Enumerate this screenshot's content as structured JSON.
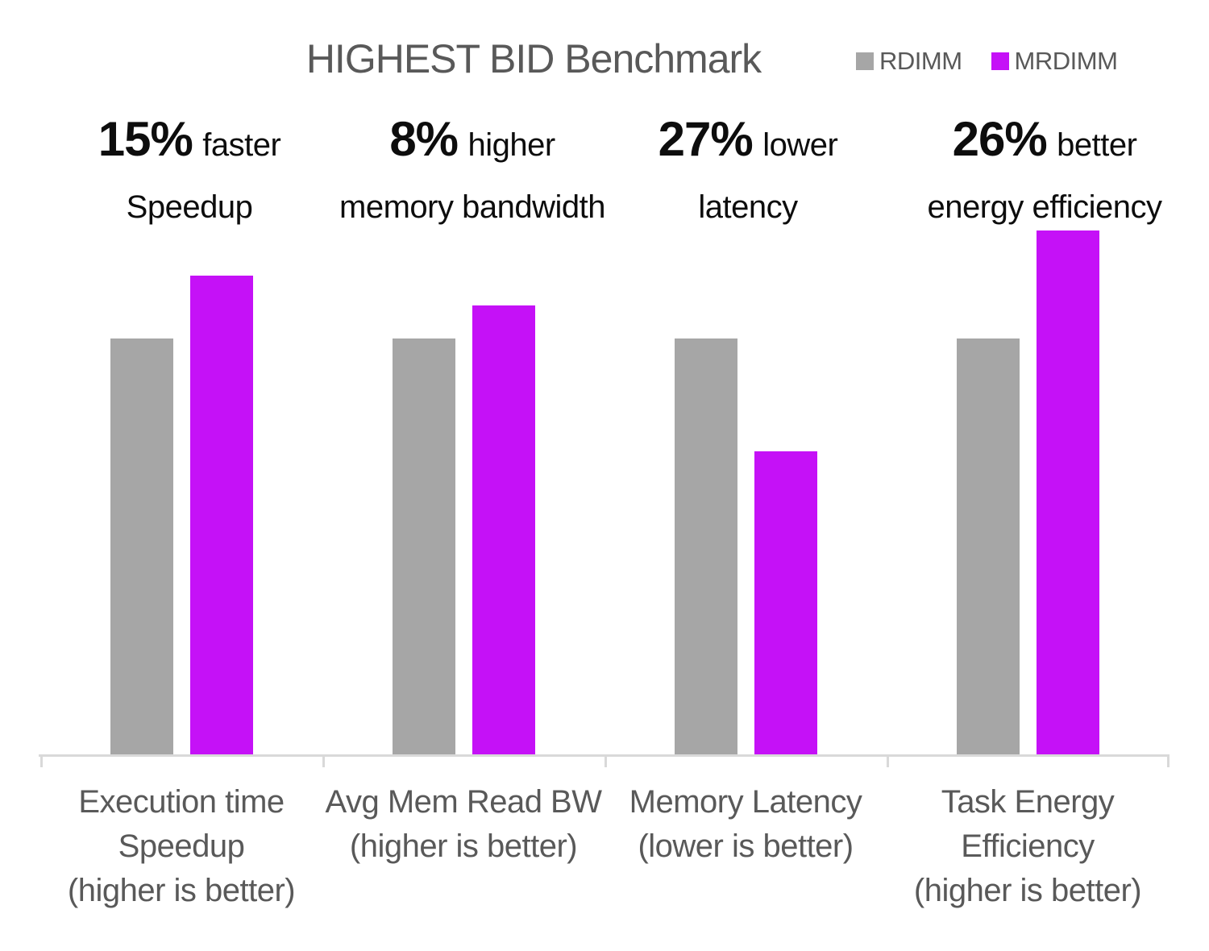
{
  "title": "HIGHEST BID Benchmark",
  "annotations": [
    {
      "value": "15%",
      "qualifier": "faster",
      "detail": "Speedup"
    },
    {
      "value": "8%",
      "qualifier": "higher",
      "detail": "memory  bandwidth"
    },
    {
      "value": "27%",
      "qualifier": "lower",
      "detail": "latency"
    },
    {
      "value": "26%",
      "qualifier": "better",
      "detail": "energy efficiency"
    }
  ],
  "chart_data": {
    "type": "bar",
    "title": "HIGHEST BID Benchmark",
    "categories": [
      "Execution time\nSpeedup\n(higher is better)",
      "Avg Mem Read BW\n(higher is better)",
      "Memory Latency\n(lower is better)",
      "Task Energy\nEfficiency\n(higher is better)"
    ],
    "series": [
      {
        "name": "RDIMM",
        "color": "#a6a6a6",
        "values": [
          1.0,
          1.0,
          1.0,
          1.0
        ]
      },
      {
        "name": "MRDIMM",
        "color": "#c511f7",
        "values": [
          1.15,
          1.08,
          0.73,
          1.26
        ]
      }
    ],
    "ylim": [
      0,
      1.26
    ],
    "grid": false,
    "value_axis_visible": false,
    "legend_position": "top-right"
  },
  "colors": {
    "rdimm_bar": "#a6a6a6",
    "mrdimm_bar": "#c511f7",
    "title_text": "#595959",
    "label_text": "#595959",
    "annotation_text": "#0d0d0d",
    "axis_line": "#d9d9d9"
  }
}
